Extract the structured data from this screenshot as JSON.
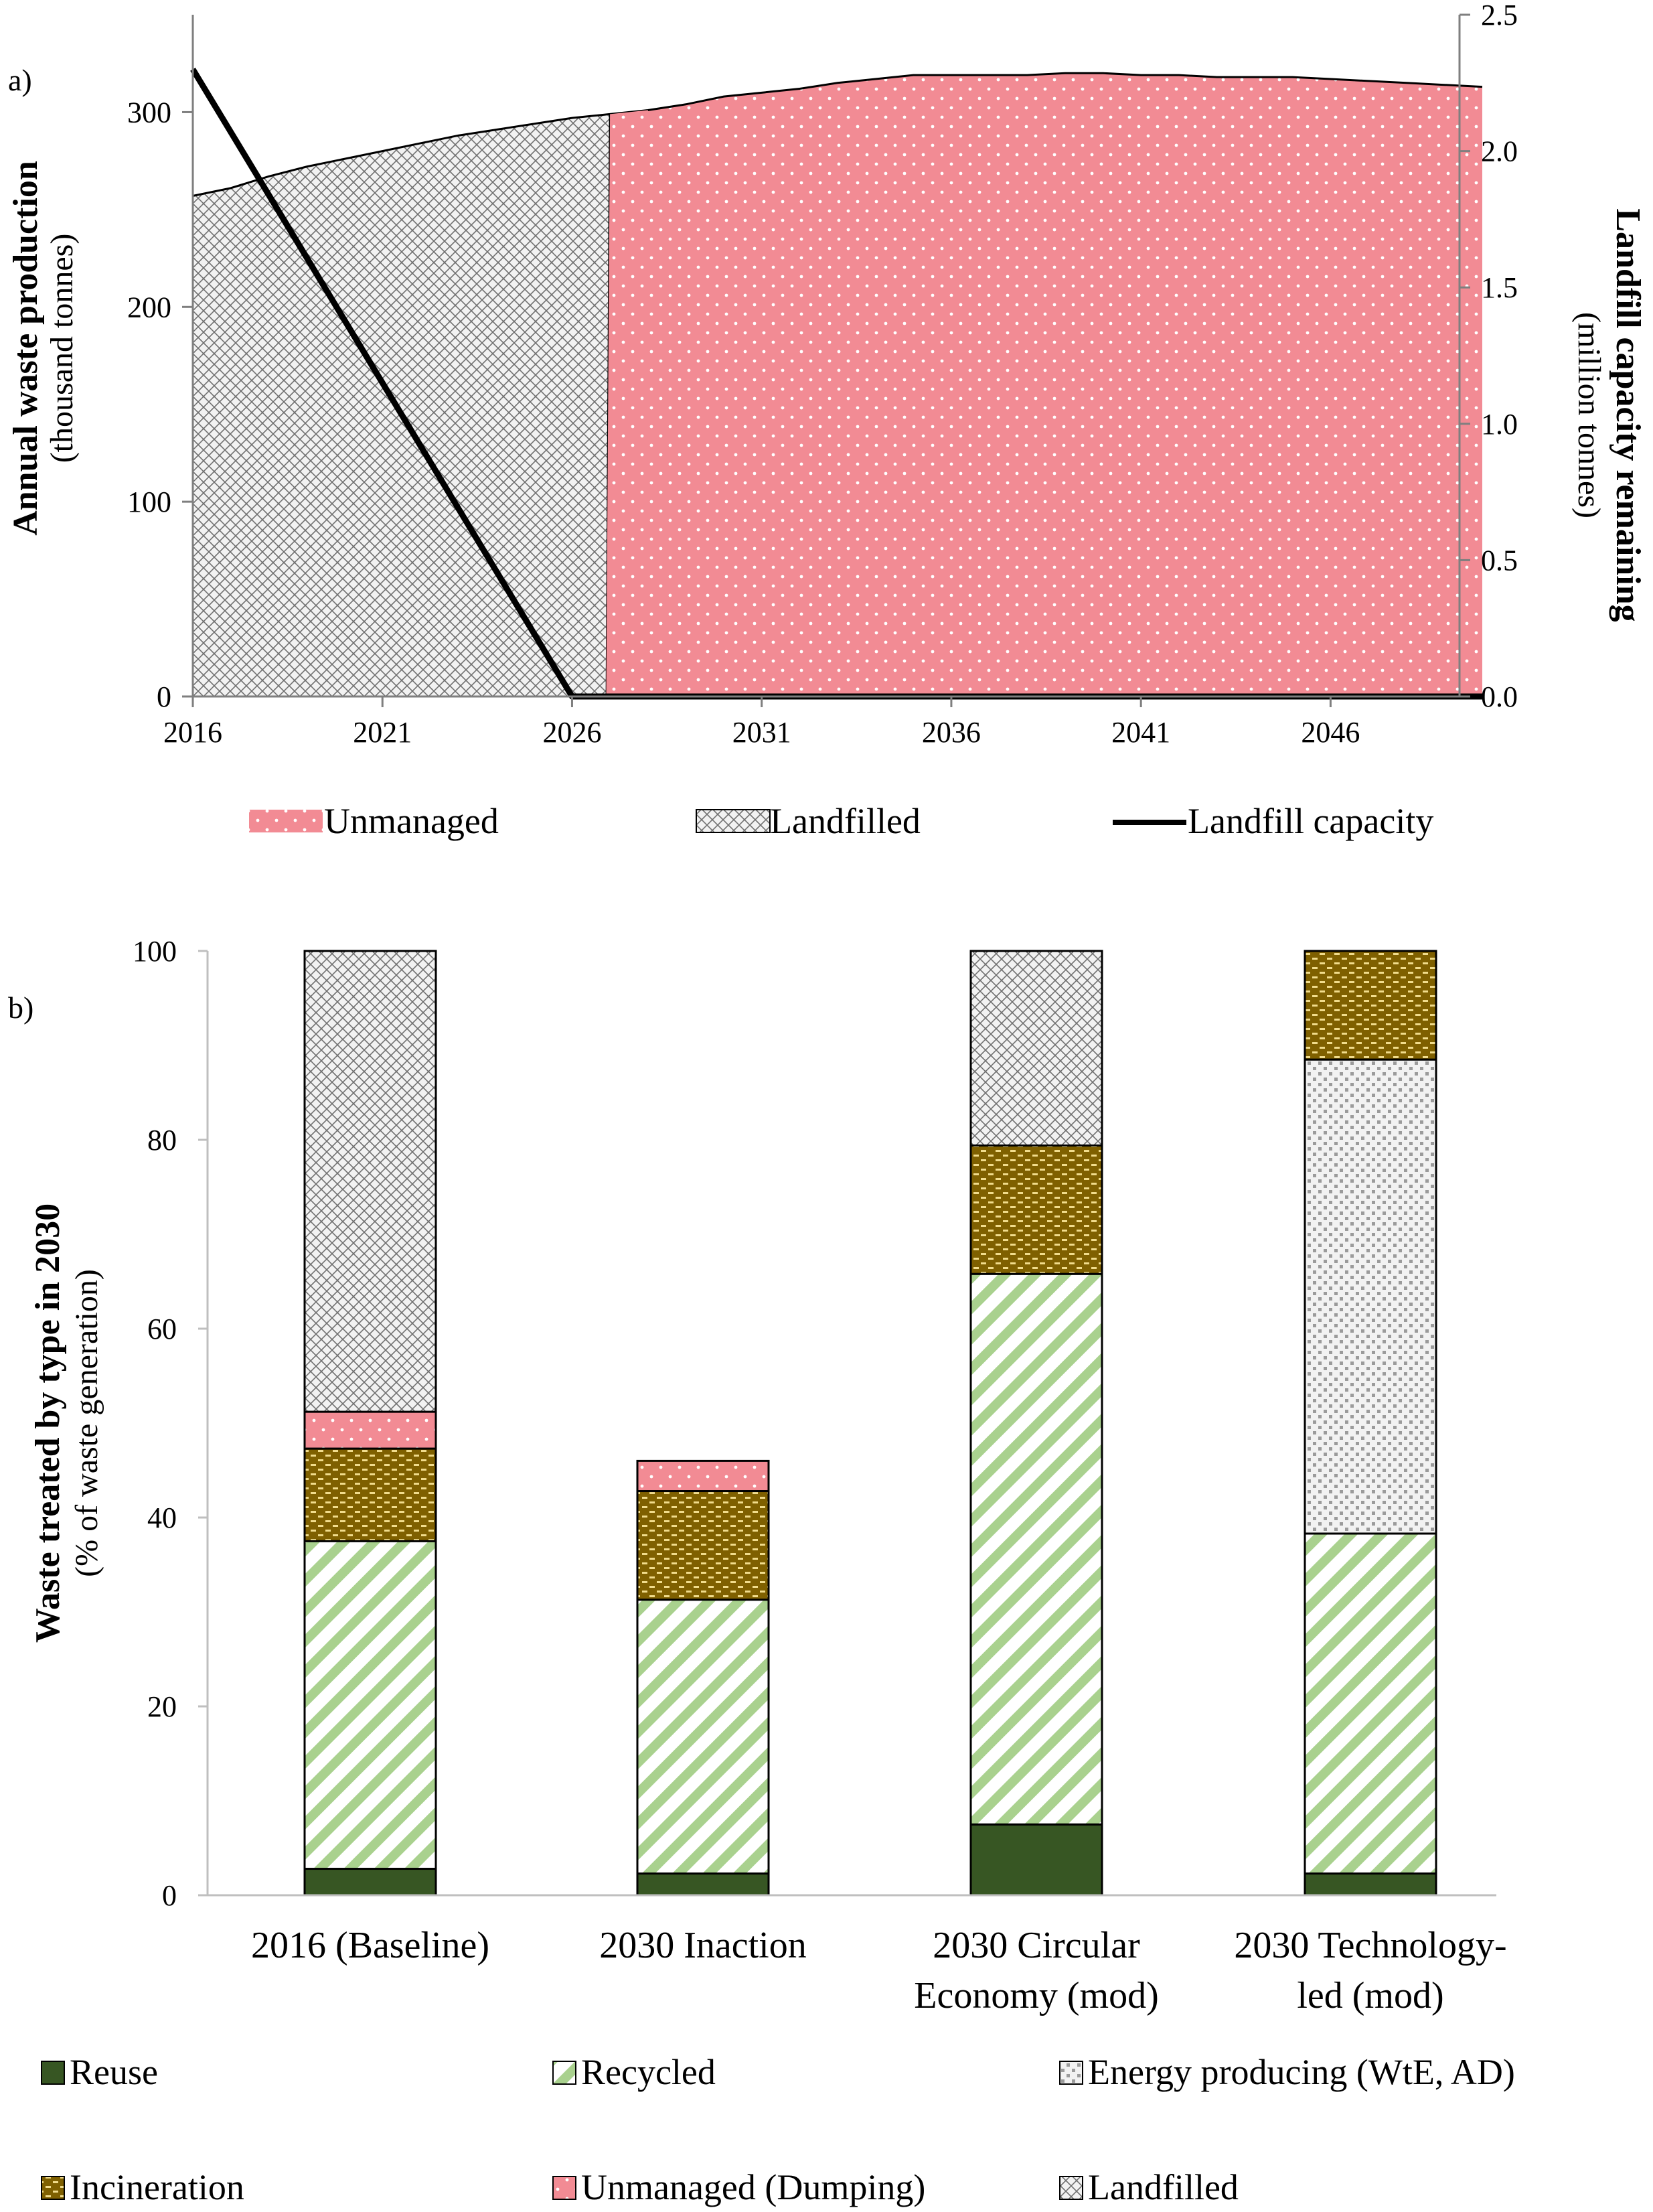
{
  "chart_data": [
    {
      "panel": "a)",
      "type": "area",
      "x_ticks": [
        "2016",
        "2021",
        "2026",
        "2031",
        "2036",
        "2041",
        "2046"
      ],
      "y_left": {
        "label_bold": "Annual waste production",
        "label_unit": "(thousand tonnes)",
        "range": [
          0,
          350
        ],
        "ticks": [
          "0",
          "100",
          "200",
          "300"
        ],
        "tick_values": [
          0,
          100,
          200,
          300
        ]
      },
      "y_right": {
        "label_bold": "Landfill capacity remaining",
        "label_unit": "(million tonnes)",
        "range": [
          0,
          2.5
        ],
        "ticks": [
          "0.0",
          "0.5",
          "1.0",
          "1.5",
          "2.0",
          "2.5"
        ],
        "tick_values": [
          0,
          0.5,
          1.0,
          1.5,
          2.0,
          2.5
        ]
      },
      "x": [
        2016,
        2017,
        2018,
        2019,
        2020,
        2021,
        2022,
        2023,
        2024,
        2025,
        2026,
        2027,
        2028,
        2029,
        2030,
        2031,
        2032,
        2033,
        2034,
        2035,
        2036,
        2037,
        2038,
        2039,
        2040,
        2041,
        2042,
        2043,
        2044,
        2045,
        2046,
        2047,
        2048,
        2049,
        2050
      ],
      "series": [
        {
          "name": "Landfilled",
          "axis": "left",
          "style": "area",
          "values": [
            257,
            261,
            267,
            272,
            276,
            280,
            284,
            288,
            291,
            294,
            297,
            299,
            0,
            0,
            0,
            0,
            0,
            0,
            0,
            0,
            0,
            0,
            0,
            0,
            0,
            0,
            0,
            0,
            0,
            0,
            0,
            0,
            0,
            0,
            0
          ]
        },
        {
          "name": "Unmanaged",
          "axis": "left",
          "style": "area",
          "values": [
            0,
            0,
            0,
            0,
            0,
            0,
            0,
            0,
            0,
            0,
            0,
            0,
            301,
            304,
            308,
            310,
            312,
            315,
            317,
            319,
            319,
            319,
            319,
            320,
            320,
            319,
            319,
            318,
            318,
            318,
            317,
            316,
            315,
            314,
            313
          ]
        },
        {
          "name": "Landfill capacity",
          "axis": "right",
          "style": "line",
          "values": [
            2.3,
            2.07,
            1.84,
            1.61,
            1.38,
            1.15,
            0.92,
            0.69,
            0.46,
            0.23,
            0.0,
            0.0,
            0.0,
            0.0,
            0.0,
            0.0,
            0.0,
            0.0,
            0.0,
            0.0,
            0.0,
            0.0,
            0.0,
            0.0,
            0.0,
            0.0,
            0.0,
            0.0,
            0.0,
            0.0,
            0.0,
            0.0,
            0.0,
            0.0,
            0.0
          ]
        }
      ],
      "legend": [
        {
          "label": "Unmanaged",
          "pattern": "dots-pink"
        },
        {
          "label": "Landfilled",
          "pattern": "crosshatch"
        },
        {
          "label": "Landfill capacity",
          "pattern": "line"
        }
      ],
      "legend_position": "bottom",
      "grid": false
    },
    {
      "panel": "b)",
      "type": "bar",
      "stacked": true,
      "categories": [
        [
          "2016 (Baseline)"
        ],
        [
          "2030 Inaction"
        ],
        [
          "2030 Circular",
          "Economy (mod)"
        ],
        [
          "2030 Technology-",
          "led (mod)"
        ]
      ],
      "ylabel_bold": "Waste treated by type in 2030",
      "ylabel_unit": "(% of waste generation)",
      "ylim": [
        0,
        100
      ],
      "y_ticks": [
        "0",
        "20",
        "40",
        "60",
        "80",
        "100"
      ],
      "y_tick_values": [
        0,
        20,
        40,
        60,
        80,
        100
      ],
      "series": [
        {
          "name": "Reuse",
          "pattern": "solid-green",
          "values": [
            2.8,
            2.3,
            7.5,
            2.3
          ]
        },
        {
          "name": "Recycled",
          "pattern": "diag-green",
          "values": [
            34.7,
            29.0,
            58.3,
            36.0
          ]
        },
        {
          "name": "Energy producing (WtE, AD)",
          "pattern": "dots-grey",
          "values": [
            0,
            0,
            0,
            50.2
          ]
        },
        {
          "name": "Incineration",
          "pattern": "brick-brown",
          "values": [
            9.8,
            11.5,
            13.6,
            11.5
          ]
        },
        {
          "name": "Unmanaged (Dumping)",
          "pattern": "dots-pink",
          "values": [
            3.9,
            3.2,
            0,
            0
          ]
        },
        {
          "name": "Landfilled",
          "pattern": "crosshatch",
          "values": [
            48.8,
            0,
            20.6,
            0
          ]
        }
      ],
      "legend_position": "bottom",
      "grid": false
    }
  ],
  "colors": {
    "unmanaged": "#f28b94",
    "landfilled": "#f2f2f2",
    "reuse": "#375623",
    "recycled": "#a9d18e",
    "energy": "#a6a6a6",
    "incineration": "#7f6000"
  }
}
